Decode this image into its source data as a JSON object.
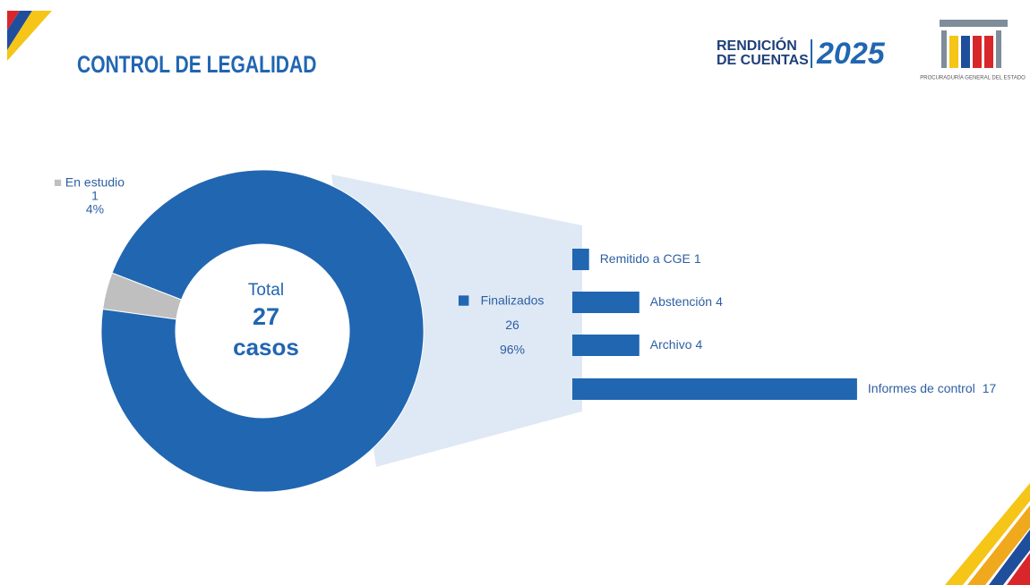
{
  "header": {
    "title": "CONTROL DE LEGALIDAD",
    "logo": {
      "line1": "RENDICIÓN",
      "line2": "DE CUENTAS",
      "year": "2025",
      "institution": "PROCURADURÍA GENERAL DEL ESTADO"
    }
  },
  "chart_data": [
    {
      "type": "pie",
      "hole": true,
      "categories": [
        "En estudio",
        "Finalizados"
      ],
      "values": [
        1,
        26
      ],
      "percent_labels": [
        "4%",
        "96%"
      ],
      "colors": [
        "#bfbfbf",
        "#2166b1"
      ],
      "center": {
        "top": "Total",
        "value": 27,
        "bottom": "casos"
      }
    },
    {
      "type": "bar",
      "orientation": "horizontal",
      "categories": [
        "Remitido a CGE",
        "Abstención",
        "Archivo",
        "Informes de control"
      ],
      "values": [
        1,
        4,
        4,
        17
      ],
      "color": "#2166b1"
    }
  ]
}
